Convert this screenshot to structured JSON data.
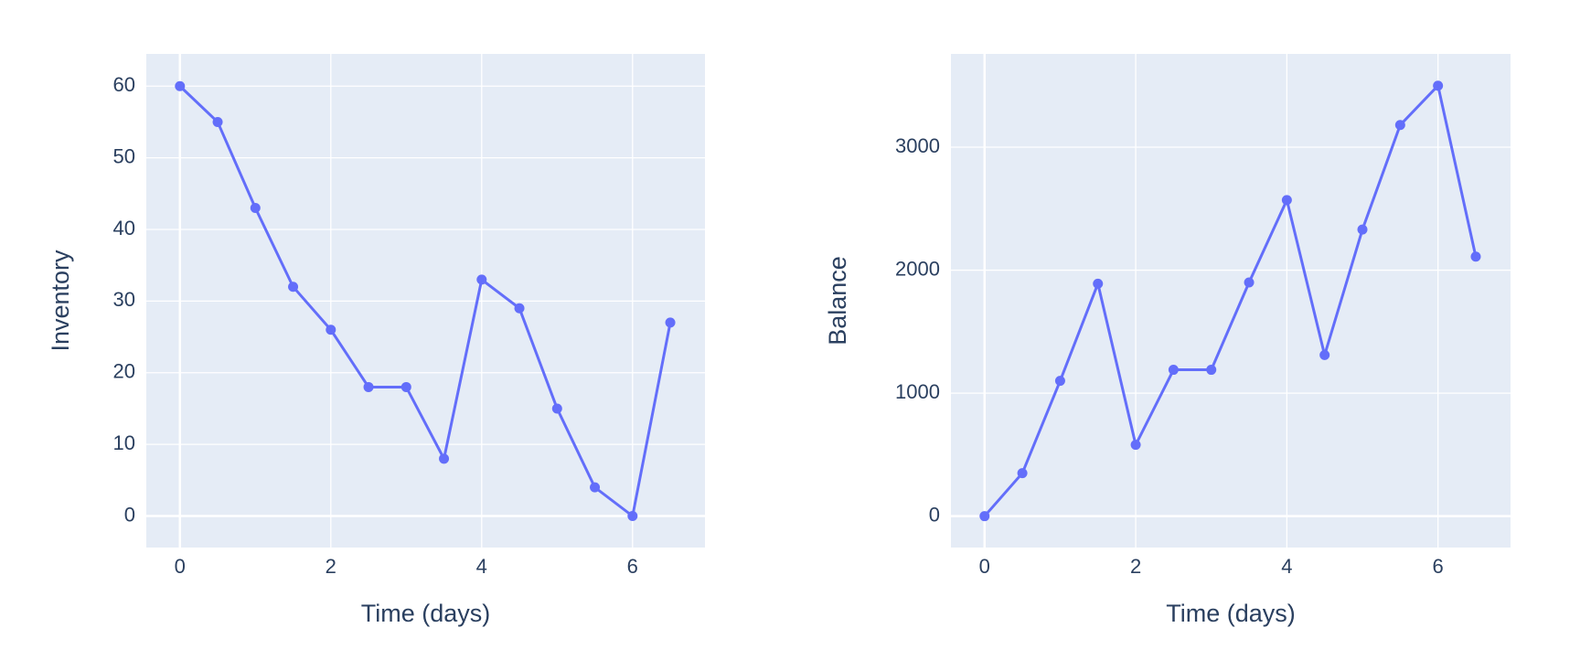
{
  "chart_data": [
    {
      "type": "line",
      "x_label": "Time (days)",
      "y_label": "Inventory",
      "x": [
        0,
        0.5,
        1,
        1.5,
        2,
        2.5,
        3,
        3.5,
        4,
        4.5,
        5,
        5.5,
        6,
        6.5
      ],
      "values": [
        60,
        55,
        43,
        32,
        26,
        18,
        18,
        8,
        33,
        29,
        15,
        4,
        0,
        27
      ],
      "color": "#636efa",
      "xlim": [
        -0.446,
        6.96
      ],
      "ylim": [
        -4.4,
        64.5
      ],
      "xticks": [
        0,
        2,
        4,
        6
      ],
      "yticks": [
        0,
        10,
        20,
        30,
        40,
        50,
        60
      ],
      "grid": true
    },
    {
      "type": "line",
      "x_label": "Time (days)",
      "y_label": "Balance",
      "x": [
        0,
        0.5,
        1,
        1.5,
        2,
        2.5,
        3,
        3.5,
        4,
        4.5,
        5,
        5.5,
        6,
        6.5
      ],
      "values": [
        0,
        350,
        1100,
        1890,
        580,
        1190,
        1190,
        1900,
        2570,
        1310,
        2330,
        3180,
        3500,
        2110
      ],
      "color": "#636efa",
      "xlim": [
        -0.445,
        6.96
      ],
      "ylim": [
        -255,
        3758
      ],
      "xticks": [
        0,
        2,
        4,
        6
      ],
      "yticks": [
        0,
        1000,
        2000,
        3000
      ],
      "grid": true
    }
  ]
}
